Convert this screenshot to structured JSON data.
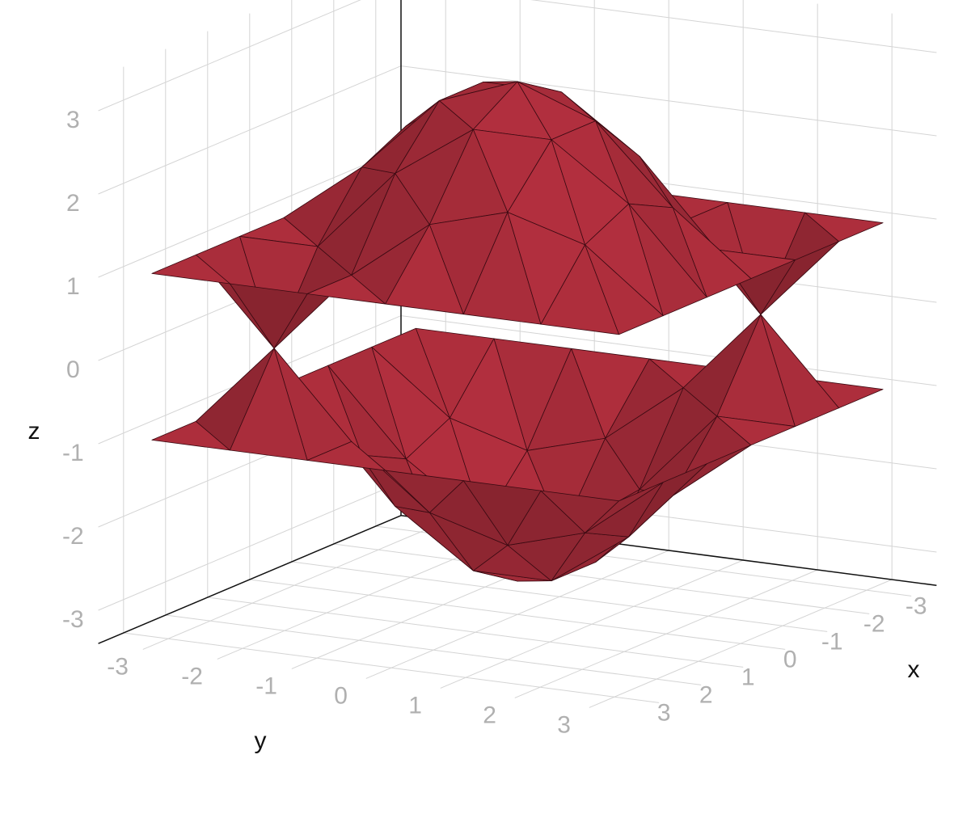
{
  "chart_data": {
    "type": "surface",
    "xlabel": "x",
    "ylabel": "y",
    "zlabel": "z",
    "x": [
      -3.14,
      -2.09,
      -1.05,
      0,
      1.05,
      2.09,
      3.14
    ],
    "y": [
      -3.14,
      -2.09,
      -1.05,
      0,
      1.05,
      2.09,
      3.14
    ],
    "series": [
      {
        "color": "#b5303f",
        "values": [
          [
            1,
            1,
            1,
            1,
            1,
            1,
            1
          ],
          [
            1,
            1.73,
            2,
            1.73,
            1,
            0,
            1
          ],
          [
            1,
            2,
            2.65,
            2.65,
            2,
            1,
            1
          ],
          [
            1,
            1.73,
            2.65,
            3,
            2.65,
            1.73,
            1
          ],
          [
            1,
            1,
            2,
            2.65,
            2.65,
            2,
            1
          ],
          [
            1,
            0,
            1,
            1.73,
            2,
            1.73,
            1
          ],
          [
            1,
            1,
            1,
            1,
            1,
            1,
            1
          ]
        ]
      },
      {
        "color": "#b5303f",
        "values": [
          [
            -1,
            -1,
            -1,
            -1,
            -1,
            -1,
            -1
          ],
          [
            -1,
            -1.73,
            -2,
            -1.73,
            -1,
            0,
            -1
          ],
          [
            -1,
            -2,
            -2.65,
            -2.65,
            -2,
            -1,
            -1
          ],
          [
            -1,
            -1.73,
            -2.65,
            -3,
            -2.65,
            -1.73,
            -1
          ],
          [
            -1,
            -1,
            -2,
            -2.65,
            -2.65,
            -2,
            -1
          ],
          [
            -1,
            0,
            -1,
            -1.73,
            -2,
            -1.73,
            -1
          ],
          [
            -1,
            -1,
            -1,
            -1,
            -1,
            -1,
            -1
          ]
        ]
      }
    ],
    "xlim": [
      -3.6,
      3.6
    ],
    "ylim": [
      -3.6,
      3.6
    ],
    "zlim": [
      -3.4,
      3.4
    ],
    "xticks": [
      -3,
      -2,
      -1,
      0,
      1,
      2,
      3
    ],
    "yticks": [
      -3,
      -2,
      -1,
      0,
      1,
      2,
      3
    ],
    "zticks": [
      -3,
      -2,
      -1,
      0,
      1,
      2,
      3
    ],
    "grid": true
  }
}
